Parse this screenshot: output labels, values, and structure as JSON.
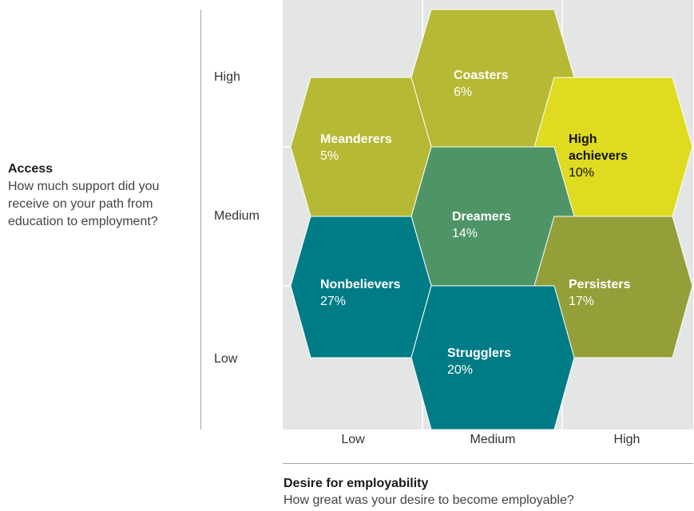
{
  "y_axis": {
    "title": "Access",
    "subtitle": "How much support did you receive on your path from education to employment?",
    "ticks": [
      "High",
      "Medium",
      "Low"
    ]
  },
  "x_axis": {
    "title": "Desire for employability",
    "subtitle": "How great was your desire to become employable?",
    "ticks": [
      "Low",
      "Medium",
      "High"
    ]
  },
  "segments": [
    {
      "name": "Coasters",
      "percent": "6%",
      "color": "#b5b933",
      "text_color": "#ffffff"
    },
    {
      "name": "Meanderers",
      "percent": "5%",
      "color": "#b5b933",
      "text_color": "#ffffff"
    },
    {
      "name": "High achievers",
      "percent": "10%",
      "color": "#dedb21",
      "text_color": "#111111"
    },
    {
      "name": "Dreamers",
      "percent": "14%",
      "color": "#4e9466",
      "text_color": "#ffffff"
    },
    {
      "name": "Nonbelievers",
      "percent": "27%",
      "color": "#007c87",
      "text_color": "#ffffff"
    },
    {
      "name": "Persisters",
      "percent": "17%",
      "color": "#959f3a",
      "text_color": "#ffffff"
    },
    {
      "name": "Strugglers",
      "percent": "20%",
      "color": "#007c87",
      "text_color": "#ffffff"
    }
  ],
  "colors": {
    "grid_background": "#e4e6e6",
    "grid_lines": "#ffffff",
    "axis_rule": "#9aa9b0"
  }
}
